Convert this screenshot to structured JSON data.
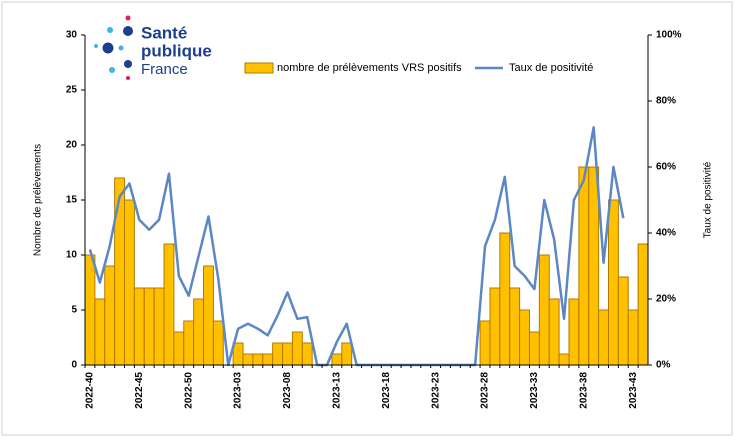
{
  "logo": [
    "Santé",
    "publique",
    "France"
  ],
  "chart_data": {
    "type": "bar_line",
    "y_label": "Nombre de prélèvements",
    "y2_label": "Taux de positivité",
    "categories": [
      "2022-40",
      null,
      null,
      null,
      null,
      "2022-45",
      null,
      null,
      null,
      null,
      "2022-50",
      null,
      null,
      null,
      null,
      "2023-03",
      null,
      null,
      null,
      null,
      "2023-08",
      null,
      null,
      null,
      null,
      "2023-13",
      null,
      null,
      null,
      null,
      "2023-18",
      null,
      null,
      null,
      null,
      "2023-23",
      null,
      null,
      null,
      null,
      "2023-28",
      null,
      null,
      null,
      null,
      "2023-33",
      null,
      null,
      null,
      null,
      "2023-38",
      null,
      null,
      null,
      null,
      "2023-43",
      null
    ],
    "series": [
      {
        "name": "nombre de prélèvements VRS positifs",
        "type": "bar",
        "color": "#ffc000",
        "edge": "#b07a00",
        "values": [
          10,
          6,
          9,
          17,
          15,
          7,
          7,
          7,
          11,
          3,
          4,
          6,
          9,
          4,
          0,
          2,
          1,
          1,
          1,
          2,
          2,
          3,
          2,
          0,
          0,
          1,
          2,
          0,
          0,
          0,
          0,
          0,
          0,
          0,
          0,
          0,
          0,
          0,
          0,
          0,
          4,
          7,
          12,
          7,
          5,
          3,
          10,
          6,
          1,
          6,
          18,
          18,
          5,
          15,
          8,
          5,
          11
        ]
      },
      {
        "name": "Taux de positivité",
        "type": "line",
        "axis": "y2",
        "color": "#5b87c5",
        "values": [
          35,
          25,
          36,
          51,
          55,
          44,
          41,
          44,
          58,
          27,
          21,
          33,
          45,
          26,
          0,
          11,
          12.5,
          11,
          9,
          15,
          22,
          14,
          14.5,
          0,
          0,
          7,
          12.5,
          0,
          0,
          0,
          0,
          0,
          0,
          0,
          0,
          0,
          0,
          0,
          0,
          0,
          36,
          44,
          57,
          30,
          27,
          23,
          50,
          38,
          14,
          50,
          56,
          72,
          31,
          60,
          44.5,
          null,
          null
        ]
      }
    ],
    "ylim": [
      0,
      30
    ],
    "yticks": [
      0,
      5,
      10,
      15,
      20,
      25,
      30
    ],
    "y2lim": [
      0,
      100
    ],
    "y2ticks": [
      {
        "value": 0,
        "label": "0%"
      },
      {
        "value": 20,
        "label": "20%"
      },
      {
        "value": 40,
        "label": "40%"
      },
      {
        "value": 60,
        "label": "60%"
      },
      {
        "value": 80,
        "label": "80%"
      },
      {
        "value": 100,
        "label": "100%"
      }
    ]
  }
}
